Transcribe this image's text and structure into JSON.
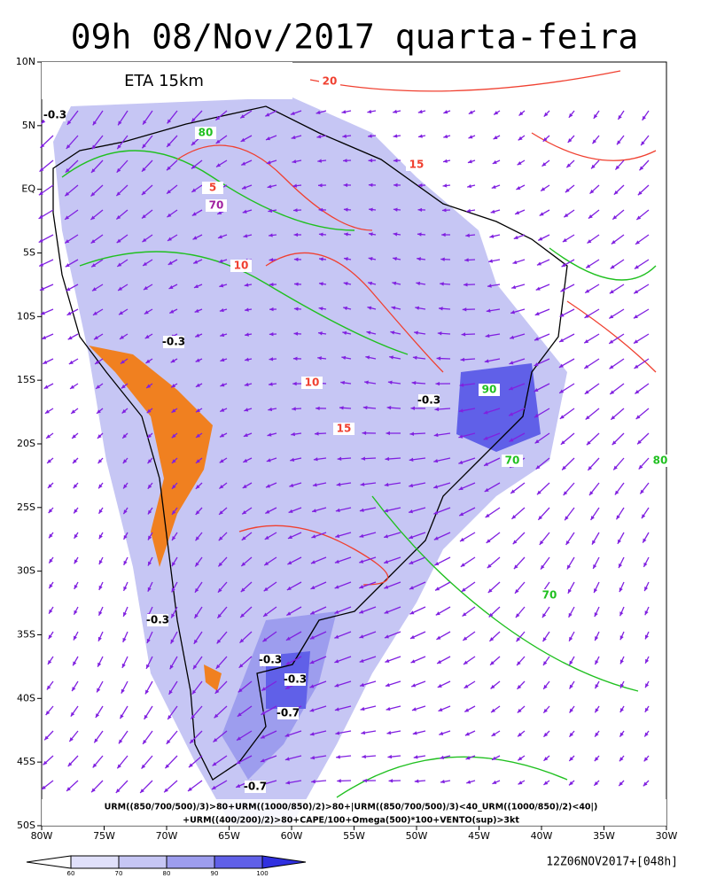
{
  "title": "09h 08/Nov/2017 quarta-feira",
  "model": "ETA 15km",
  "lat_labels": [
    "10N",
    "5N",
    "EQ",
    "5S",
    "10S",
    "15S",
    "20S",
    "25S",
    "30S",
    "35S",
    "40S",
    "45S",
    "50S"
  ],
  "lon_labels": [
    "80W",
    "75W",
    "70W",
    "65W",
    "60W",
    "55W",
    "50W",
    "45W",
    "40W",
    "35W",
    "30W"
  ],
  "formula": [
    "URM((850/700/500)/3)>80+URM((1000/850)/2)>80+|URM((850/700/500)/3)<40_URM((1000/850)/2)<40|)",
    "+URM((400/200)/2)>80+CAPE/100+Omega(500)*100+VENTO(sup)>3kt"
  ],
  "colorbar_labels": [
    "60",
    "70",
    "80",
    "90",
    "100"
  ],
  "run": "12Z06NOV2017+[048h]",
  "contour_labels": [
    "-0.3",
    "80",
    "70",
    "10",
    "-0.3",
    "10",
    "-0.3",
    "90",
    "70",
    "15",
    "-0.3",
    "-0.3",
    "-0.3",
    "-0.7",
    "-0.7",
    "80",
    "20",
    "15",
    "5",
    "70"
  ]
}
